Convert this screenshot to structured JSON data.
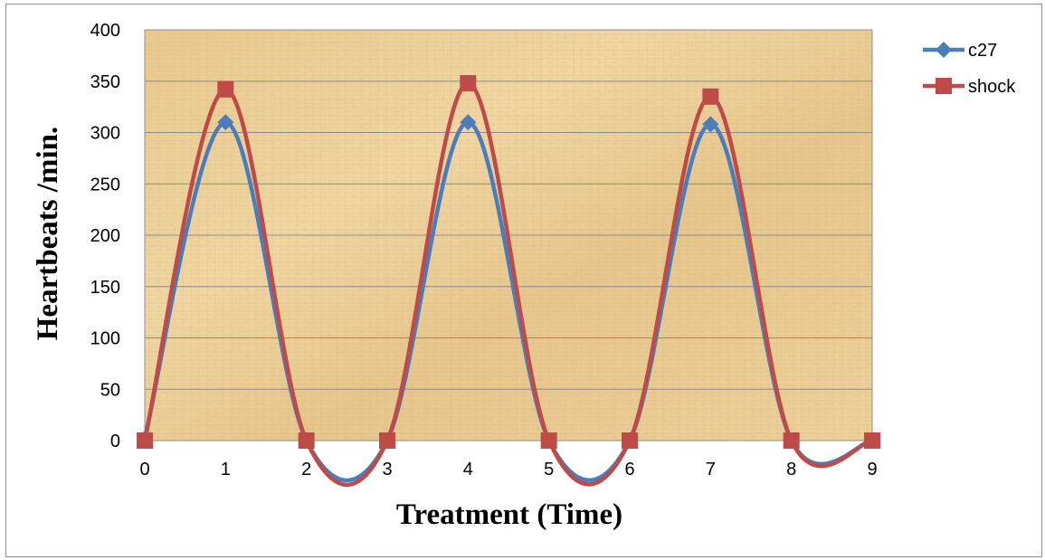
{
  "chart_data": {
    "type": "line",
    "title": "",
    "xlabel": "Treatment (Time)",
    "ylabel": "Heartbeats /min.",
    "x": [
      0,
      1,
      2,
      3,
      4,
      5,
      6,
      7,
      8,
      9
    ],
    "xlim": [
      0,
      9
    ],
    "ylim": [
      0,
      400
    ],
    "yticks": [
      0,
      50,
      100,
      150,
      200,
      250,
      300,
      350,
      400
    ],
    "xticks": [
      0,
      1,
      2,
      3,
      4,
      5,
      6,
      7,
      8,
      9
    ],
    "grid": true,
    "smooth": true,
    "legend_position": "top-right",
    "plot_background": "parchment",
    "series": [
      {
        "name": "c27",
        "color": "#4a7ebb",
        "marker": "diamond",
        "values": [
          2,
          310,
          0,
          0,
          310,
          0,
          0,
          308,
          0,
          0
        ]
      },
      {
        "name": "shock",
        "color": "#be4b48",
        "marker": "square",
        "values": [
          0,
          342,
          0,
          0,
          348,
          0,
          0,
          335,
          0,
          0
        ]
      }
    ]
  }
}
